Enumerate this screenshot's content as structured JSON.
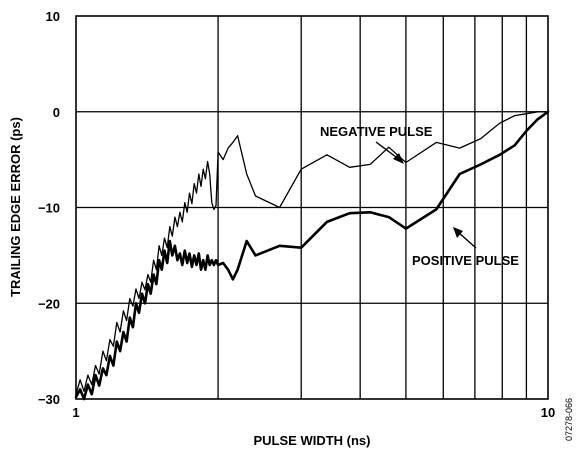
{
  "chart_data": {
    "type": "line",
    "title": "",
    "xlabel": "PULSE WIDTH (ns)",
    "ylabel": "TRAILING EDGE ERROR (ps)",
    "x_scale": "log",
    "xlim": [
      1,
      10
    ],
    "ylim": [
      -30,
      10
    ],
    "x_ticks": [
      1,
      10
    ],
    "x_tick_labels": [
      "1",
      "10"
    ],
    "y_ticks": [
      10,
      0,
      -10,
      -20,
      -30
    ],
    "y_tick_labels": [
      "10",
      "0",
      "−10",
      "−20",
      "−30"
    ],
    "grid": true,
    "figure_id": "07278-066",
    "series": [
      {
        "name": "NEGATIVE PULSE",
        "color": "#000000",
        "line_weight": "thin",
        "x": [
          1.0,
          1.02,
          1.04,
          1.06,
          1.08,
          1.1,
          1.12,
          1.14,
          1.16,
          1.18,
          1.2,
          1.22,
          1.24,
          1.26,
          1.28,
          1.3,
          1.32,
          1.34,
          1.36,
          1.38,
          1.4,
          1.42,
          1.44,
          1.46,
          1.48,
          1.5,
          1.52,
          1.54,
          1.56,
          1.58,
          1.6,
          1.62,
          1.64,
          1.66,
          1.68,
          1.7,
          1.72,
          1.74,
          1.76,
          1.78,
          1.8,
          1.82,
          1.84,
          1.86,
          1.88,
          1.9,
          1.92,
          1.94,
          1.96,
          1.98,
          2.0,
          2.05,
          2.1,
          2.15,
          2.2,
          2.3,
          2.4,
          2.7,
          3.0,
          3.4,
          3.8,
          4.2,
          4.6,
          5.0,
          5.8,
          6.5,
          7.2,
          7.9,
          8.5,
          9.0,
          9.5,
          10.0
        ],
        "values": [
          -29.5,
          -28.0,
          -29.2,
          -27.5,
          -28.5,
          -26.5,
          -27.4,
          -25.0,
          -26.0,
          -23.8,
          -24.5,
          -22.0,
          -23.0,
          -20.8,
          -21.8,
          -19.5,
          -20.3,
          -18.5,
          -19.5,
          -17.8,
          -18.6,
          -17.0,
          -17.8,
          -15.5,
          -16.5,
          -14.0,
          -15.0,
          -13.2,
          -14.2,
          -12.0,
          -13.0,
          -11.0,
          -12.0,
          -10.5,
          -11.5,
          -9.5,
          -10.5,
          -8.5,
          -9.6,
          -7.5,
          -8.5,
          -6.5,
          -7.8,
          -6.0,
          -7.0,
          -5.2,
          -6.5,
          -9.5,
          -10.2,
          -9.8,
          -4.2,
          -5.0,
          -3.8,
          -3.2,
          -2.5,
          -6.5,
          -8.8,
          -10.0,
          -6.0,
          -4.5,
          -5.8,
          -5.5,
          -3.7,
          -5.3,
          -3.2,
          -3.8,
          -2.8,
          -1.2,
          -0.4,
          -0.2,
          0.0,
          0.0
        ]
      },
      {
        "name": "POSITIVE PULSE",
        "color": "#000000",
        "line_weight": "bold",
        "x": [
          1.0,
          1.02,
          1.04,
          1.06,
          1.08,
          1.1,
          1.12,
          1.14,
          1.16,
          1.18,
          1.2,
          1.22,
          1.24,
          1.26,
          1.28,
          1.3,
          1.32,
          1.34,
          1.36,
          1.38,
          1.4,
          1.42,
          1.44,
          1.46,
          1.48,
          1.5,
          1.52,
          1.54,
          1.56,
          1.58,
          1.6,
          1.62,
          1.64,
          1.66,
          1.68,
          1.7,
          1.72,
          1.74,
          1.76,
          1.78,
          1.8,
          1.82,
          1.84,
          1.86,
          1.88,
          1.9,
          1.92,
          1.94,
          1.96,
          1.98,
          2.0,
          2.05,
          2.1,
          2.15,
          2.2,
          2.3,
          2.4,
          2.7,
          3.0,
          3.4,
          3.8,
          4.2,
          4.6,
          5.0,
          5.8,
          6.5,
          7.2,
          7.9,
          8.5,
          9.0,
          9.5,
          10.0
        ],
        "values": [
          -29.8,
          -29.0,
          -30.0,
          -28.5,
          -29.5,
          -27.5,
          -28.6,
          -26.8,
          -27.5,
          -25.5,
          -26.5,
          -24.0,
          -25.0,
          -23.0,
          -24.0,
          -21.5,
          -22.5,
          -20.0,
          -21.0,
          -19.0,
          -20.0,
          -18.0,
          -19.0,
          -17.0,
          -18.0,
          -15.5,
          -16.5,
          -14.5,
          -15.8,
          -13.5,
          -15.0,
          -14.0,
          -15.5,
          -14.8,
          -16.0,
          -14.5,
          -15.8,
          -14.8,
          -16.2,
          -15.0,
          -16.0,
          -14.8,
          -16.5,
          -15.5,
          -16.5,
          -15.0,
          -16.0,
          -15.5,
          -16.0,
          -15.5,
          -16.0,
          -15.8,
          -16.5,
          -17.5,
          -16.5,
          -13.5,
          -15.0,
          -14.0,
          -14.2,
          -11.5,
          -10.6,
          -10.5,
          -11.0,
          -12.2,
          -10.2,
          -6.5,
          -5.5,
          -4.5,
          -3.5,
          -2.0,
          -0.8,
          0.0
        ]
      }
    ],
    "annotations": [
      {
        "text": "NEGATIVE PULSE",
        "series": "NEGATIVE PULSE"
      },
      {
        "text": "POSITIVE PULSE",
        "series": "POSITIVE PULSE"
      }
    ]
  }
}
